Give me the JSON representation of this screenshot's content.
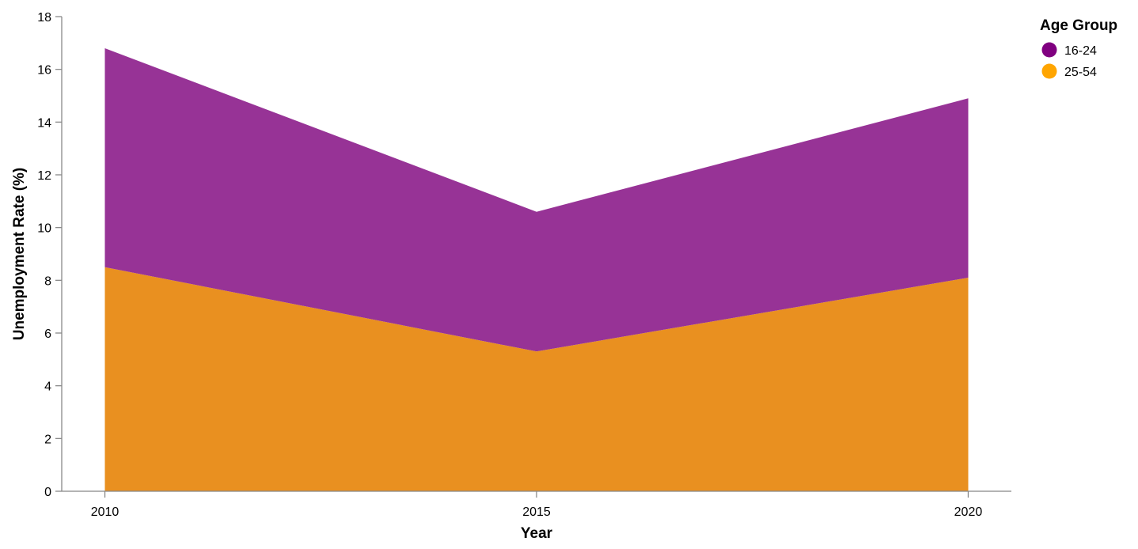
{
  "chart_data": {
    "type": "area",
    "stacked": true,
    "x": [
      2010,
      2015,
      2020
    ],
    "xlabel": "Year",
    "ylabel": "Unemployment Rate (%)",
    "xlim": [
      2009.5,
      2020.5
    ],
    "ylim": [
      0,
      18
    ],
    "x_ticks": [
      "2010",
      "2015",
      "2020"
    ],
    "y_ticks": [
      "0",
      "2",
      "4",
      "6",
      "8",
      "10",
      "12",
      "14",
      "16",
      "18"
    ],
    "grid": false,
    "legend": {
      "title": "Age Group",
      "position": "top-right"
    },
    "series": [
      {
        "name": "25-54",
        "values": [
          8.5,
          5.3,
          8.1
        ],
        "color": "#FFA500",
        "fill": "#E99020"
      },
      {
        "name": "16-24",
        "values": [
          8.3,
          5.3,
          6.8
        ],
        "color": "#800080",
        "fill": "#973396"
      }
    ]
  }
}
